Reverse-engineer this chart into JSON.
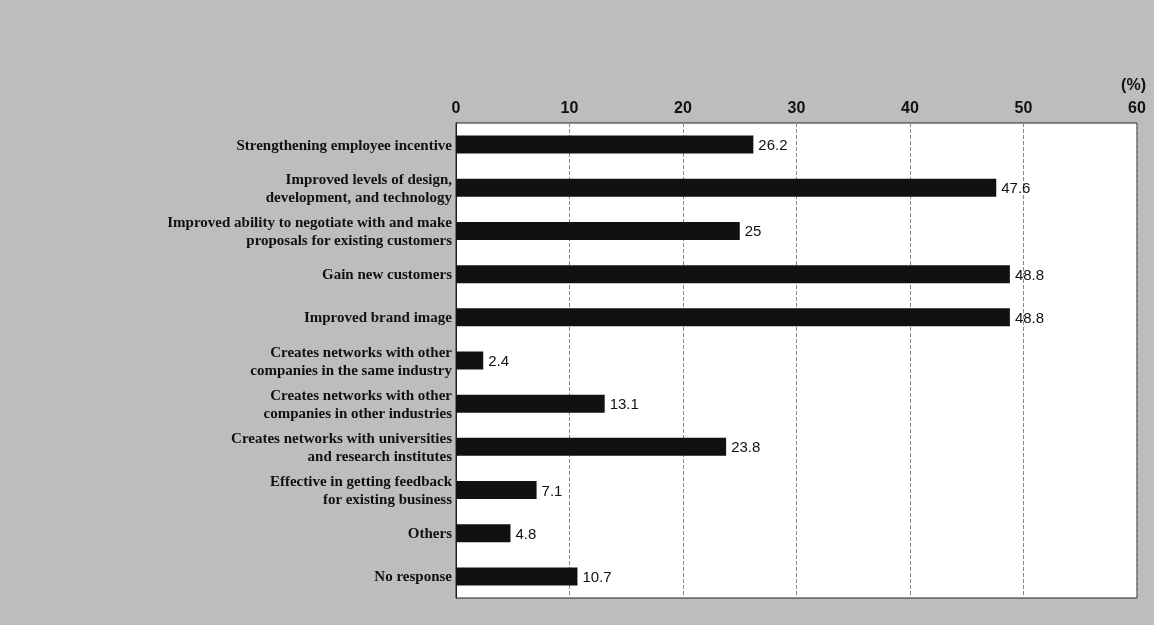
{
  "chart_data": {
    "type": "bar",
    "orientation": "horizontal",
    "xlabel": "(%)",
    "categories": [
      "Strengthening employee incentive",
      "Improved levels of design,\ndevelopment, and technology",
      "Improved ability to negotiate with and make\nproposals for existing customers",
      "Gain new customers",
      "Improved brand image",
      "Creates networks with other\ncompanies in the same industry",
      "Creates networks with other\ncompanies in other industries",
      "Creates networks with universities\nand research institutes",
      "Effective in getting feedback\nfor existing business",
      "Others",
      "No response"
    ],
    "values": [
      26.2,
      47.6,
      25,
      48.8,
      48.8,
      2.4,
      13.1,
      23.8,
      7.1,
      4.8,
      10.7
    ],
    "color": "#111111",
    "xlim": [
      0,
      60
    ],
    "xticks": [
      0,
      10,
      20,
      30,
      40,
      50,
      60
    ],
    "grid": "x",
    "data_labels": true
  }
}
